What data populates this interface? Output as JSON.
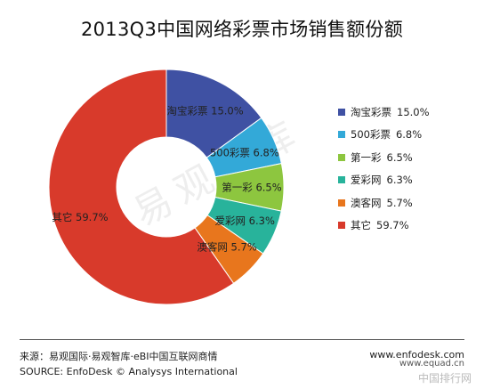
{
  "title": "2013Q3中国网络彩票市场销售额份额",
  "watermark": "易观智库",
  "chart_data": {
    "type": "pie",
    "title": "2013Q3中国网络彩票市场销售额份额",
    "donut": true,
    "legend_position": "right",
    "categories": [
      "淘宝彩票",
      "500彩票",
      "第一彩",
      "爱彩网",
      "澳客网",
      "其它"
    ],
    "values": [
      15.0,
      6.8,
      6.5,
      6.3,
      5.7,
      59.7
    ],
    "labels": [
      "淘宝彩票 15.0%",
      "500彩票 6.8%",
      "第一彩 6.5%",
      "爱彩网 6.3%",
      "澳客网 5.7%",
      "其它 59.7%"
    ],
    "colors": [
      "#3F51A3",
      "#33A9D8",
      "#8DC63F",
      "#28B39B",
      "#E8761D",
      "#D83A2B"
    ]
  },
  "footer": {
    "source_cn": "来源：易观国际·易观智库·eBI中国互联网商情",
    "source_en": "SOURCE: EnfoDesk © Analysys International",
    "website": "www.enfodesk.com",
    "stamp1": "www.equad.cn",
    "stamp2": "中国排行网"
  }
}
